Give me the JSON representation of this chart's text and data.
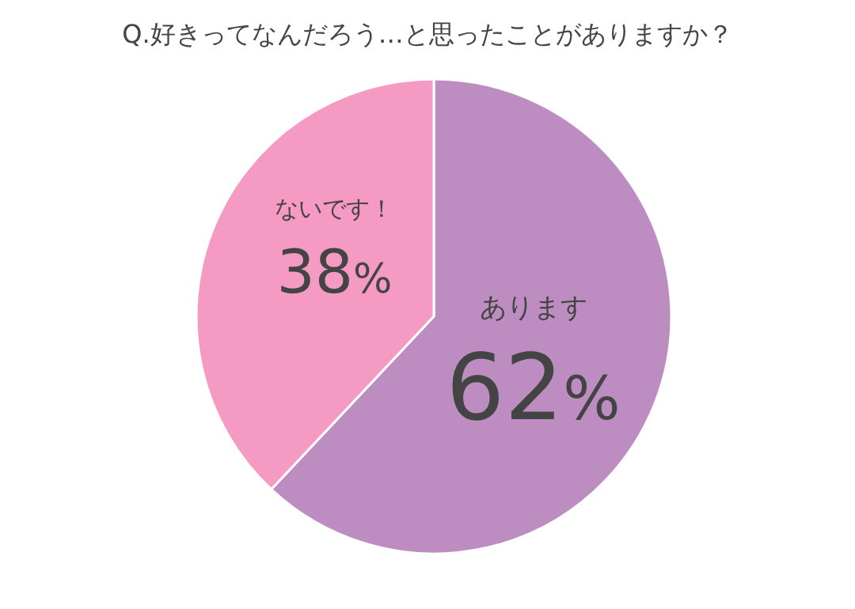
{
  "chart_data": {
    "type": "pie",
    "title": "Q.好きってなんだろう…と思ったことがありますか？",
    "categories": [
      "あります",
      "ないです！"
    ],
    "values": [
      62,
      38
    ],
    "colors": [
      "#bd8cc0",
      "#f49ac3"
    ],
    "value_labels": [
      "62%",
      "38%"
    ]
  }
}
